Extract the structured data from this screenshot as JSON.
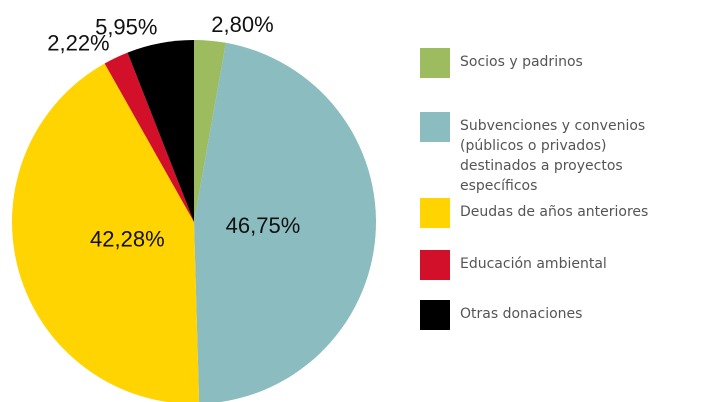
{
  "chart_data": {
    "type": "pie",
    "categories": [
      "Socios y padrinos",
      "Subvenciones y convenios (públicos o privados) destinados a proyectos específicos",
      "Deudas de años anteriores",
      "Educación ambiental",
      "Otras donaciones"
    ],
    "values": [
      2.8,
      46.75,
      42.28,
      2.22,
      5.95
    ],
    "value_labels": [
      "2,80%",
      "46,75%",
      "42,28%",
      "2,22%",
      "5,95%"
    ],
    "colors": [
      "#9dbb5f",
      "#8bbcc0",
      "#ffd400",
      "#d3102a",
      "#000000"
    ],
    "legend": "right"
  }
}
